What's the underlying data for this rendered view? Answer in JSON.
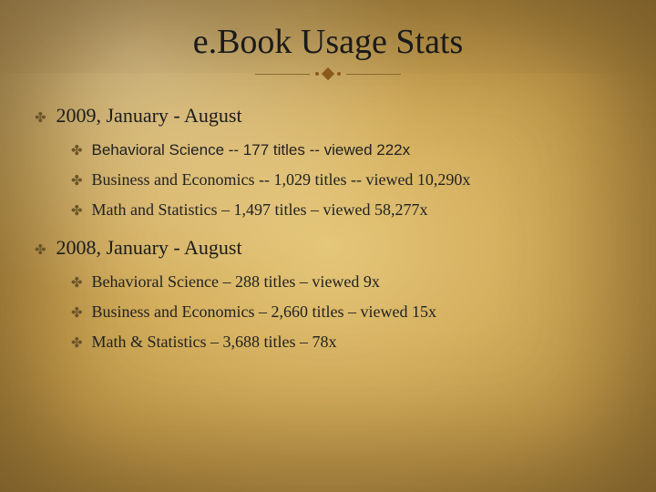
{
  "slide": {
    "title": "e.Book Usage Stats",
    "background": {
      "center_color": "#e5c77a",
      "mid_color": "#d4af5e",
      "outer_color": "#c19a4a",
      "vignette_color": "#50370f"
    },
    "divider": {
      "line_color": "#8a6a2f",
      "accent_color": "#8a5a1a"
    },
    "bullet_glyph": "✤",
    "bullet_color": "#6b5428",
    "sections": [
      {
        "heading": "2009, January - August",
        "heading_fontsize": 22,
        "items": [
          {
            "text": "Behavioral Science -- 177 titles -- viewed 222x",
            "font": "sans"
          },
          {
            "text": "Business and Economics -- 1,029 titles -- viewed 10,290x",
            "font": "serif"
          },
          {
            "text": "Math and Statistics – 1,497 titles – viewed 58,277x",
            "font": "serif"
          }
        ]
      },
      {
        "heading": "2008, January - August",
        "heading_fontsize": 22,
        "items": [
          {
            "text": "Behavioral Science – 288 titles – viewed 9x",
            "font": "serif"
          },
          {
            "text": "Business and Economics – 2,660 titles – viewed 15x",
            "font": "serif"
          },
          {
            "text": "Math & Statistics – 3,688 titles – 78x",
            "font": "serif"
          }
        ]
      }
    ]
  }
}
